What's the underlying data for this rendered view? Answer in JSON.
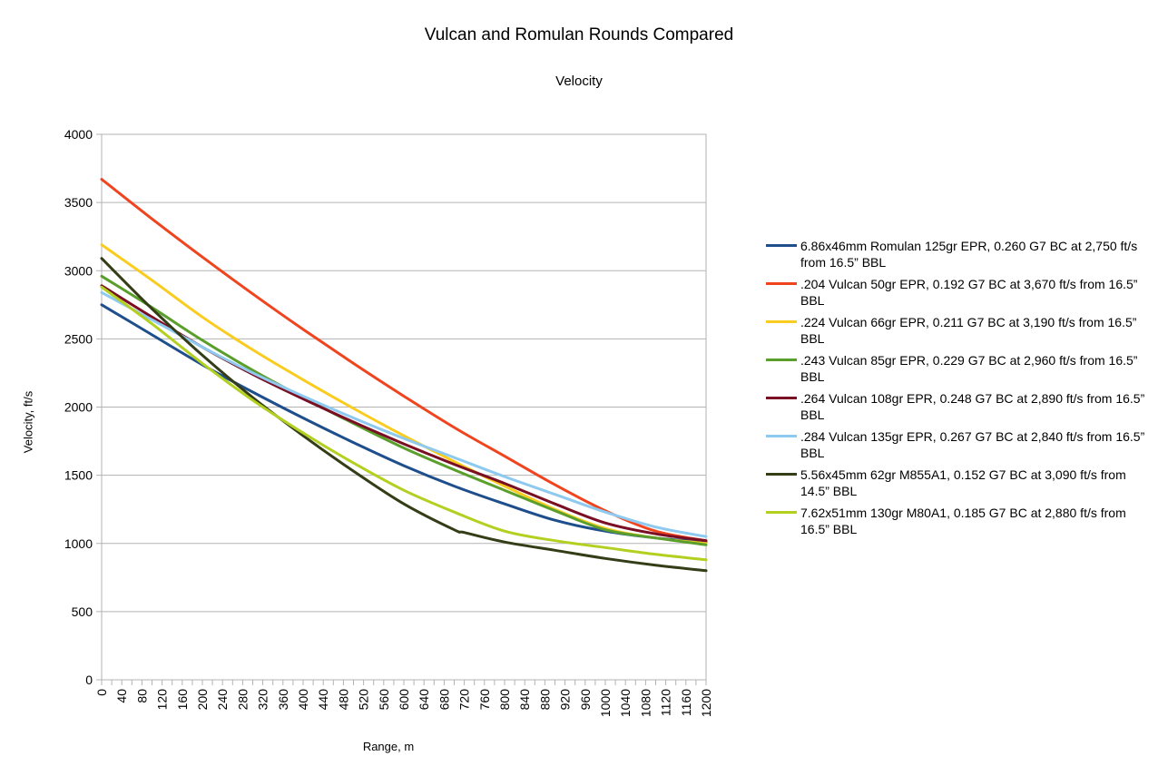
{
  "chart_data": {
    "type": "line",
    "title": "Vulcan and Romulan Rounds Compared",
    "subtitle": "Velocity",
    "xlabel": "Range, m",
    "ylabel": "Velocity, ft/s",
    "xlim": [
      0,
      1200
    ],
    "ylim": [
      0,
      4000
    ],
    "x_ticks": [
      "0",
      "40",
      "80",
      "120",
      "160",
      "200",
      "240",
      "280",
      "320",
      "360",
      "400",
      "440",
      "480",
      "520",
      "560",
      "600",
      "640",
      "680",
      "720",
      "760",
      "800",
      "840",
      "880",
      "920",
      "960",
      "1000",
      "1040",
      "1080",
      "1120",
      "1160",
      "1200"
    ],
    "y_ticks": [
      "0",
      "500",
      "1000",
      "1500",
      "2000",
      "2500",
      "3000",
      "3500",
      "4000"
    ],
    "grid": true,
    "legend_position": "right",
    "series": [
      {
        "name": "6.86x46mm Romulan 125gr EPR, 0.260 G7 BC at 2,750 ft/s from 16.5” BBL",
        "color": "#1f4e8c",
        "x": [
          0,
          100,
          200,
          300,
          400,
          500,
          600,
          700,
          800,
          900,
          1000,
          1100,
          1200
        ],
        "y": [
          2750,
          2530,
          2310,
          2110,
          1920,
          1740,
          1570,
          1420,
          1290,
          1170,
          1090,
          1040,
          1010
        ]
      },
      {
        "name": ".204 Vulcan 50gr EPR, 0.192 G7 BC at 3,670 ft/s from 16.5” BBL",
        "color": "#f0441f",
        "x": [
          0,
          100,
          200,
          300,
          400,
          500,
          600,
          700,
          800,
          900,
          1000,
          1100,
          1200
        ],
        "y": [
          3670,
          3380,
          3100,
          2830,
          2570,
          2320,
          2080,
          1850,
          1640,
          1430,
          1240,
          1090,
          1020
        ]
      },
      {
        "name": ".224 Vulcan 66gr EPR, 0.211 G7 BC at 3,190 ft/s from 16.5” BBL",
        "color": "#f9cc1f",
        "x": [
          0,
          100,
          200,
          300,
          400,
          500,
          600,
          700,
          800,
          900,
          1000,
          1100,
          1200
        ],
        "y": [
          3190,
          2930,
          2660,
          2420,
          2200,
          1990,
          1790,
          1600,
          1420,
          1250,
          1110,
          1040,
          1000
        ]
      },
      {
        "name": ".243 Vulcan 85gr EPR, 0.229 G7 BC at 2,960 ft/s from 16.5” BBL",
        "color": "#5a9e2c",
        "x": [
          0,
          100,
          200,
          300,
          400,
          500,
          600,
          700,
          800,
          900,
          1000,
          1100,
          1200
        ],
        "y": [
          2960,
          2730,
          2490,
          2270,
          2070,
          1880,
          1700,
          1540,
          1390,
          1240,
          1100,
          1040,
          990
        ]
      },
      {
        "name": ".264 Vulcan 108gr EPR, 0.248 G7 BC at 2,890 ft/s from 16.5” BBL",
        "color": "#7a0f24",
        "x": [
          0,
          100,
          200,
          300,
          400,
          500,
          600,
          700,
          800,
          900,
          1000,
          1100,
          1200
        ],
        "y": [
          2890,
          2660,
          2440,
          2240,
          2060,
          1890,
          1730,
          1580,
          1440,
          1290,
          1150,
          1070,
          1020
        ]
      },
      {
        "name": ".284 Vulcan 135gr EPR, 0.267 G7 BC at 2,840 ft/s from 16.5” BBL",
        "color": "#8ec9f0",
        "x": [
          0,
          100,
          200,
          300,
          400,
          500,
          600,
          700,
          800,
          900,
          1000,
          1100,
          1200
        ],
        "y": [
          2840,
          2640,
          2440,
          2250,
          2080,
          1920,
          1770,
          1630,
          1490,
          1360,
          1230,
          1120,
          1050
        ]
      },
      {
        "name": "5.56x45mm 62gr M855A1, 0.152 G7 BC at 3,090 ft/s from 14.5” BBL",
        "color": "#333d16",
        "x": [
          0,
          100,
          200,
          300,
          400,
          500,
          600,
          700,
          720,
          800,
          900,
          1000,
          1100,
          1200
        ],
        "y": [
          3090,
          2720,
          2380,
          2070,
          1790,
          1530,
          1290,
          1100,
          1080,
          1010,
          950,
          890,
          840,
          800
        ]
      },
      {
        "name": "7.62x51mm 130gr M80A1, 0.185 G7 BC at 2,880 ft/s from 16.5” BBL",
        "color": "#b3cf1f",
        "x": [
          0,
          100,
          200,
          300,
          400,
          500,
          600,
          700,
          800,
          900,
          1000,
          1100,
          1200
        ],
        "y": [
          2880,
          2610,
          2320,
          2050,
          1810,
          1590,
          1390,
          1230,
          1090,
          1020,
          970,
          920,
          880
        ]
      }
    ]
  }
}
